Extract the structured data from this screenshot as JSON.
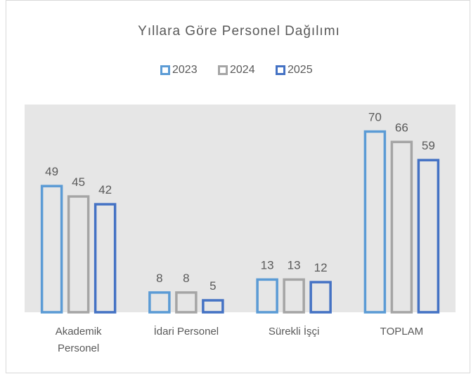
{
  "chart_data": {
    "type": "bar",
    "title": "Yıllara Göre Personel Dağılımı",
    "categories": [
      "Akademik Personel",
      "İdari Personel",
      "Sürekli İşçi",
      "TOPLAM"
    ],
    "series": [
      {
        "name": "2023",
        "color": "#5b9bd5",
        "values": [
          49,
          8,
          13,
          70
        ]
      },
      {
        "name": "2024",
        "color": "#a5a5a5",
        "values": [
          45,
          8,
          13,
          66
        ]
      },
      {
        "name": "2025",
        "color": "#4472c4",
        "values": [
          42,
          5,
          12,
          59
        ]
      }
    ],
    "ylim": [
      0,
      80
    ],
    "legend": "top",
    "grid": false
  }
}
